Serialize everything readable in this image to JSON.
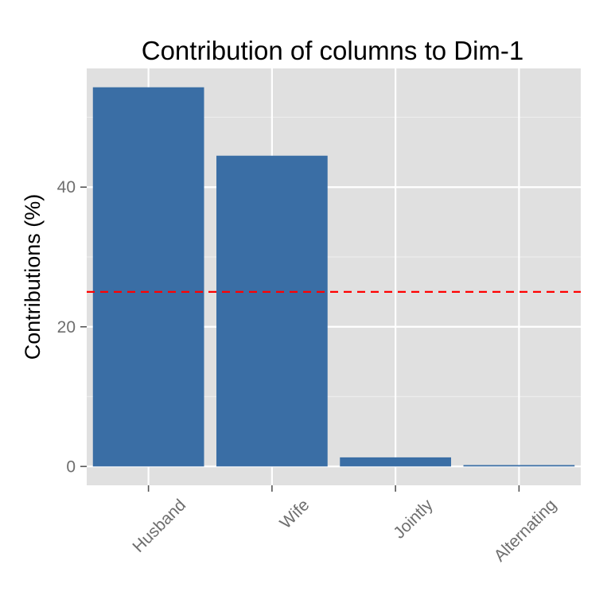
{
  "chart_data": {
    "type": "bar",
    "title": "Contribution of columns to Dim-1",
    "xlabel": "",
    "ylabel": "Contributions (%)",
    "categories": [
      "Husband",
      "Wife",
      "Jointly",
      "Alternating"
    ],
    "values": [
      54.3,
      44.5,
      1.3,
      0.2
    ],
    "ylim": [
      -2.7,
      57.0
    ],
    "yticks": [
      0,
      20,
      40
    ],
    "ytick_labels": [
      "0",
      "20",
      "40"
    ],
    "reference_line": {
      "value": 25,
      "style": "dashed",
      "color": "#ff0000"
    },
    "grid": true,
    "colors": {
      "bar": "#3a6ea5",
      "panel": "#e0e0e0",
      "grid_major": "#ffffff",
      "grid_minor": "#ececec",
      "tick_text": "#6e6e6e"
    }
  }
}
